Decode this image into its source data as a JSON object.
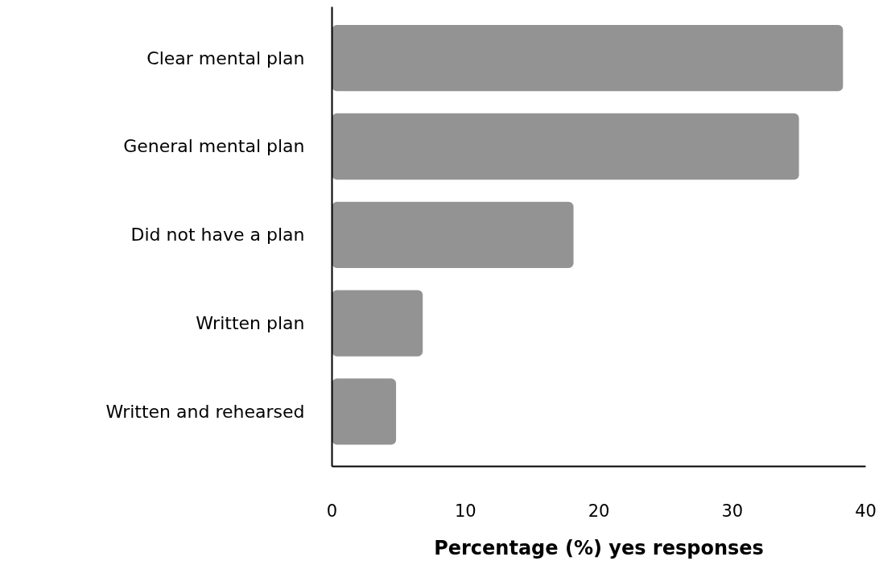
{
  "chart_data": {
    "type": "bar",
    "orientation": "horizontal",
    "categories": [
      "Clear mental plan",
      "General mental plan",
      "Did not have a plan",
      "Written plan",
      "Written and rehearsed"
    ],
    "values": [
      38.3,
      35.0,
      18.1,
      6.8,
      4.8
    ],
    "color": "#939393",
    "xlabel": "Percentage (%) yes responses",
    "xlim": [
      0,
      40
    ],
    "xticks": [
      0,
      10,
      20,
      30,
      40
    ],
    "grid": false
  }
}
